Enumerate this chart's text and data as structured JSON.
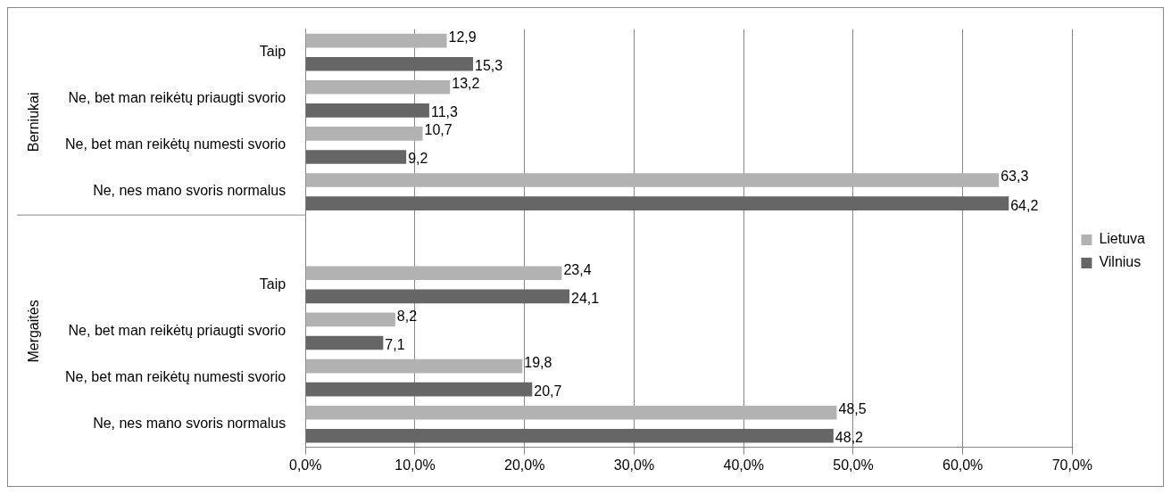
{
  "chart_data": {
    "type": "bar",
    "orientation": "horizontal",
    "categories": [
      "Taip",
      "Ne, bet man reikėtų priaugti svorio",
      "Ne, bet man reikėtų numesti svorio",
      "Ne, nes mano svoris normalus",
      null,
      "Taip",
      "Ne, bet man reikėtų priaugti svorio",
      "Ne, bet man reikėtų numesti svorio",
      "Ne, nes mano svoris normalus"
    ],
    "series": [
      {
        "name": "Lietuva",
        "color": "#b2b2b2",
        "values": [
          12.9,
          13.2,
          10.7,
          63.3,
          null,
          23.4,
          8.2,
          19.8,
          48.5
        ],
        "value_labels": [
          "12,9",
          "13,2",
          "10,7",
          "63,3",
          null,
          "23,4",
          "8,2",
          "19,8",
          "48,5"
        ]
      },
      {
        "name": "Vilnius",
        "color": "#666666",
        "values": [
          15.3,
          11.3,
          9.2,
          64.2,
          null,
          24.1,
          7.1,
          20.7,
          48.2
        ],
        "value_labels": [
          "15,3",
          "11,3",
          "9,2",
          "64,2",
          null,
          "24,1",
          "7,1",
          "20,7",
          "48,2"
        ]
      }
    ],
    "xlim": [
      0,
      70
    ],
    "xticks": [
      {
        "value": 0,
        "label": "0,0%"
      },
      {
        "value": 10,
        "label": "10,0%"
      },
      {
        "value": 20,
        "label": "20,0%"
      },
      {
        "value": 30,
        "label": "30,0%"
      },
      {
        "value": 40,
        "label": "40,0%"
      },
      {
        "value": 50,
        "label": "50,0%"
      },
      {
        "value": 60,
        "label": "60,0%"
      },
      {
        "value": 70,
        "label": "70,0%"
      }
    ],
    "annotations": [
      "Berniukai",
      "Mergaitės"
    ],
    "grid": "x",
    "legend": "right"
  }
}
